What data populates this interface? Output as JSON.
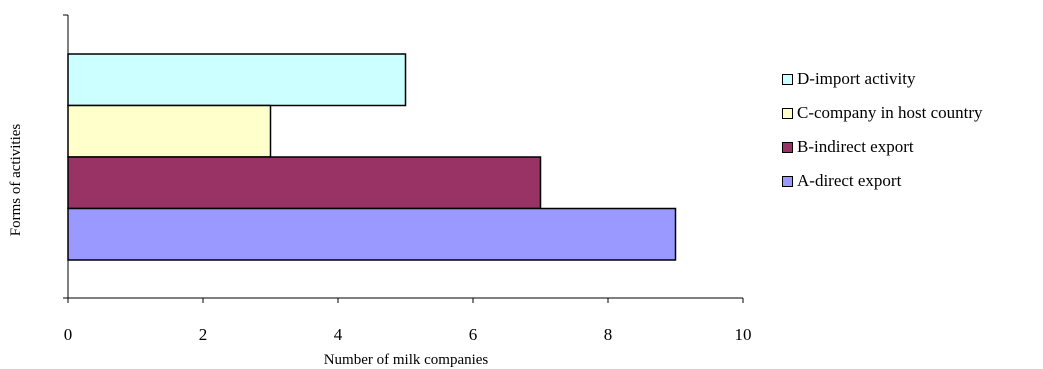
{
  "chart_data": {
    "type": "bar",
    "orientation": "horizontal",
    "categories": [
      "A-direct export",
      "B-indirect export",
      "C-company in host country",
      "D-import activity"
    ],
    "values": [
      9,
      7,
      3,
      5
    ],
    "colors": [
      "#9999ff",
      "#993366",
      "#ffffcc",
      "#ccffff"
    ],
    "xlabel": "Number of milk companies",
    "ylabel": "Forms of activities",
    "xlim": [
      0,
      10
    ],
    "xticks": [
      "0",
      "2",
      "4",
      "6",
      "8",
      "10"
    ],
    "grid": false,
    "legend_position": "right"
  }
}
